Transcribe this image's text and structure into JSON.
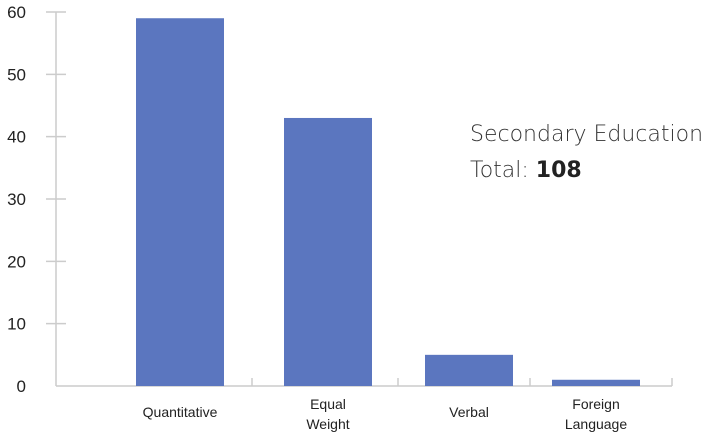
{
  "chart_data": {
    "type": "bar",
    "categories": [
      "Quantitative",
      "Equal Weight",
      "Verbal",
      "Foreign Language"
    ],
    "category_lines": [
      [
        "Quantitative"
      ],
      [
        "Equal",
        "Weight"
      ],
      [
        "Verbal"
      ],
      [
        "Foreign",
        "Language"
      ]
    ],
    "values": [
      59,
      43,
      5,
      1
    ],
    "ylim": [
      0,
      60
    ],
    "yticks": [
      0,
      10,
      20,
      30,
      40,
      50,
      60
    ],
    "bar_color": "#5b76bf",
    "axis_color": "#cccccc",
    "grid": false,
    "annotation": {
      "title": "Secondary Education",
      "total_label": "Total:",
      "total_value": "108"
    }
  }
}
